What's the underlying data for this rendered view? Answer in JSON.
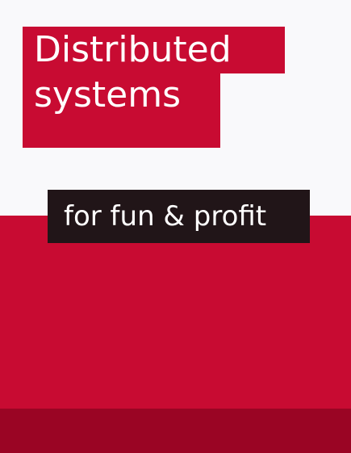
{
  "cover": {
    "title_line_1": "Distributed",
    "title_line_2": "systems",
    "subtitle": "for fun & profit"
  },
  "colors": {
    "brand_red": "#c80b32",
    "dark_red": "#9a0524",
    "label_dark": "#211518",
    "background": "#f9f9fb",
    "text": "#ffffff"
  }
}
